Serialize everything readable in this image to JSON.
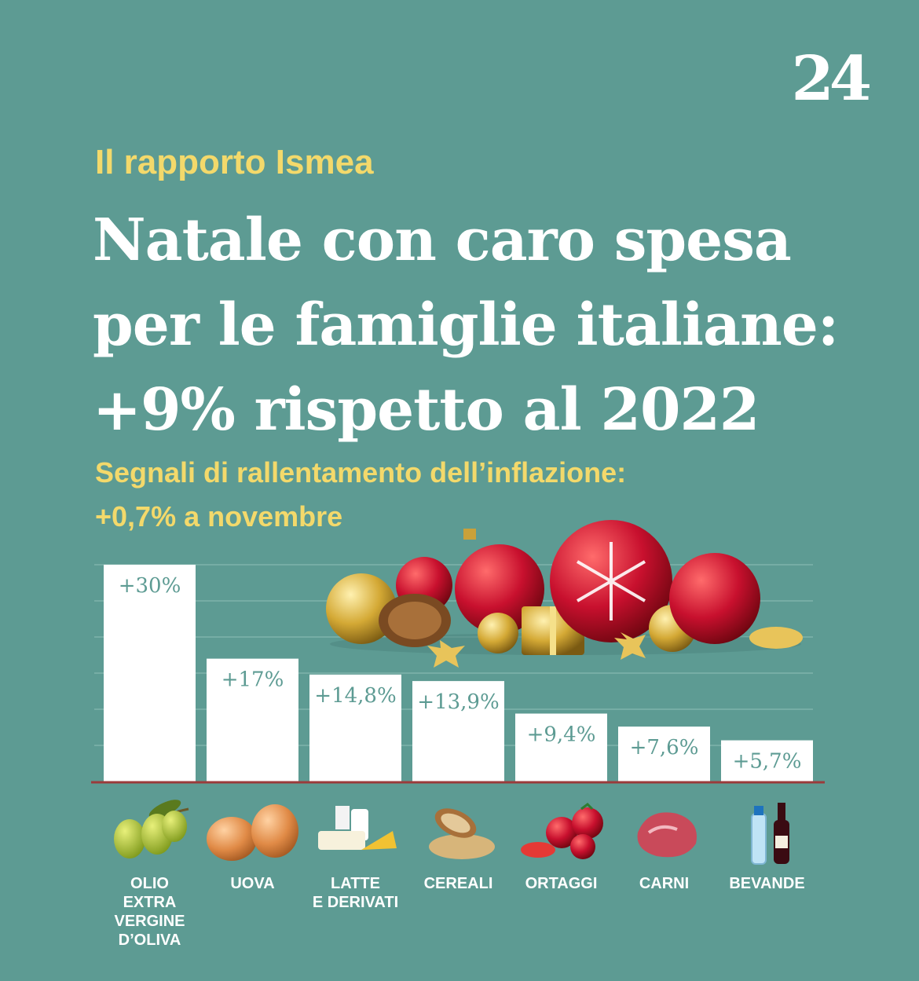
{
  "logo": "24",
  "kicker": "Il rapporto Ismea",
  "headline": [
    "Natale con caro spesa",
    "per le famiglie italiane:",
    "+9% rispetto al 2022"
  ],
  "subhead": [
    "Segnali di rallentamento dell’inflazione:",
    "+0,7% a novembre"
  ],
  "colors": {
    "background": "#5d9b93",
    "accent": "#f3d96b",
    "bar": "#ffffff",
    "baseline": "#9b3b3b"
  },
  "chart_data": {
    "type": "bar",
    "title": "Natale con caro spesa per le famiglie italiane: +9% rispetto al 2022",
    "xlabel": "",
    "ylabel": "",
    "ylim": [
      0,
      30
    ],
    "grid": true,
    "categories": [
      [
        "OLIO",
        "EXTRA",
        "VERGINE",
        "D’OLIVA"
      ],
      [
        "UOVA"
      ],
      [
        "LATTE",
        "E DERIVATI"
      ],
      [
        "CEREALI"
      ],
      [
        "ORTAGGI"
      ],
      [
        "CARNI"
      ],
      [
        "BEVANDE"
      ]
    ],
    "icons": [
      "olive-icon",
      "eggs-icon",
      "dairy-icon",
      "cereals-icon",
      "tomatoes-icon",
      "meat-icon",
      "drinks-icon"
    ],
    "values": [
      30,
      17,
      14.8,
      13.9,
      9.4,
      7.6,
      5.7
    ],
    "labels": [
      "+30%",
      "+17%",
      "+14,8%",
      "+13,9%",
      "+9,4%",
      "+7,6%",
      "+5,7%"
    ]
  }
}
